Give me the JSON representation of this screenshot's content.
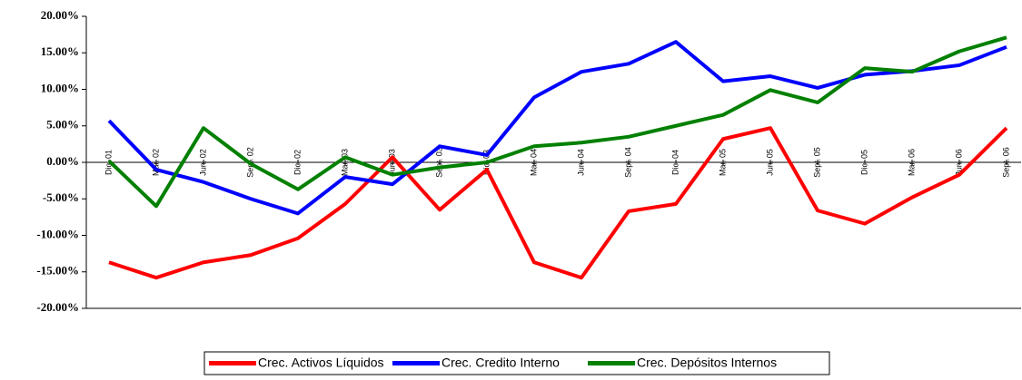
{
  "chart_data": {
    "type": "line",
    "categories": [
      "Dic. 01",
      "Mar. 02",
      "Jun. 02",
      "Sept. 02",
      "Dic. 02",
      "Mar. 03",
      "Jun. 03",
      "Sept. 03",
      "Dic. 03",
      "Mar. 04",
      "Jun. 04",
      "Sept. 04",
      "Dic. 04",
      "Mar. 05",
      "Jun. 05",
      "Sept. 05",
      "Dic. 05",
      "Mar. 06",
      "Jun. 06",
      "Sept. 06"
    ],
    "series": [
      {
        "name": "Crec. Activos Líquidos",
        "color": "#ff0000",
        "values": [
          -13.7,
          -15.8,
          -13.7,
          -12.7,
          -10.4,
          -5.7,
          0.7,
          -6.5,
          -1.0,
          -13.7,
          -15.8,
          -6.7,
          -5.7,
          3.2,
          4.7,
          -6.6,
          -8.4,
          -4.8,
          -1.7,
          4.7
        ]
      },
      {
        "name": "Crec. Credito Interno",
        "color": "#0000ff",
        "values": [
          5.7,
          -1.0,
          -2.7,
          -5.0,
          -7.0,
          -2.0,
          -3.0,
          2.2,
          1.0,
          8.9,
          12.4,
          13.5,
          16.5,
          11.1,
          11.8,
          10.2,
          12.0,
          12.5,
          13.3,
          15.8
        ]
      },
      {
        "name": "Crec. Depósitos Internos",
        "color": "#008000",
        "values": [
          0.2,
          -6.0,
          4.7,
          -0.2,
          -3.7,
          0.7,
          -1.7,
          -0.7,
          0,
          2.2,
          2.7,
          3.5,
          5.0,
          6.5,
          9.9,
          8.2,
          12.9,
          12.4,
          15.2,
          17.1
        ]
      }
    ],
    "ylim": [
      -20,
      20
    ],
    "yticks": [
      {
        "value": 20,
        "label": "20.00%"
      },
      {
        "value": 15,
        "label": "15.00%"
      },
      {
        "value": 10,
        "label": "10.00%"
      },
      {
        "value": 5,
        "label": "5.00%"
      },
      {
        "value": 0,
        "label": "0.00%"
      },
      {
        "value": -5,
        "label": "-5.00%"
      },
      {
        "value": -10,
        "label": "-10.00%"
      },
      {
        "value": -15,
        "label": "-15.00%"
      },
      {
        "value": -20,
        "label": "-20.00%"
      }
    ],
    "grid": false,
    "legend": "bottom"
  }
}
